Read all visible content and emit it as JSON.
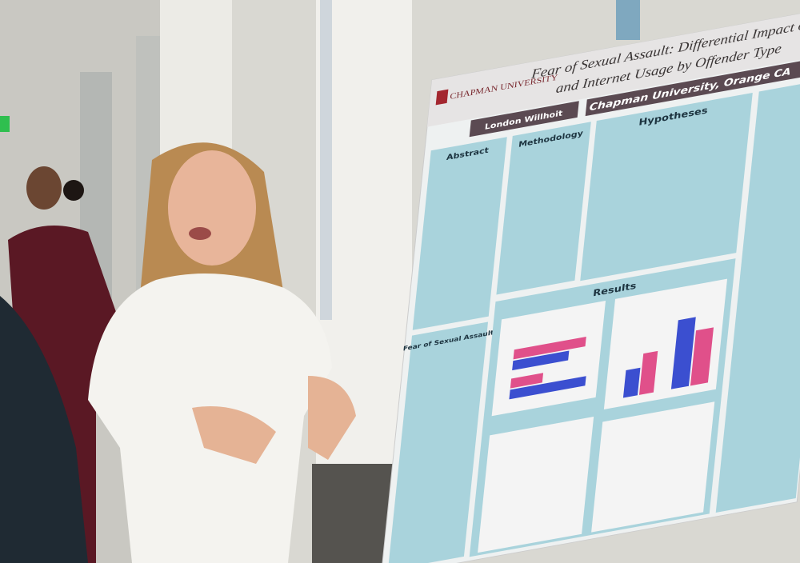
{
  "poster": {
    "title_line1": "Fear of Sexual Assault: Differential Impact of",
    "title_line2": "and Internet Usage by Offender Type",
    "logo": "CHAPMAN UNIVERSITY",
    "author": "London Willhoit",
    "affiliation": "Chapman University, Orange CA",
    "sections": [
      "Abstract",
      "Methodology",
      "Hypotheses",
      "Results",
      "Fear of Sexual Assault"
    ]
  }
}
